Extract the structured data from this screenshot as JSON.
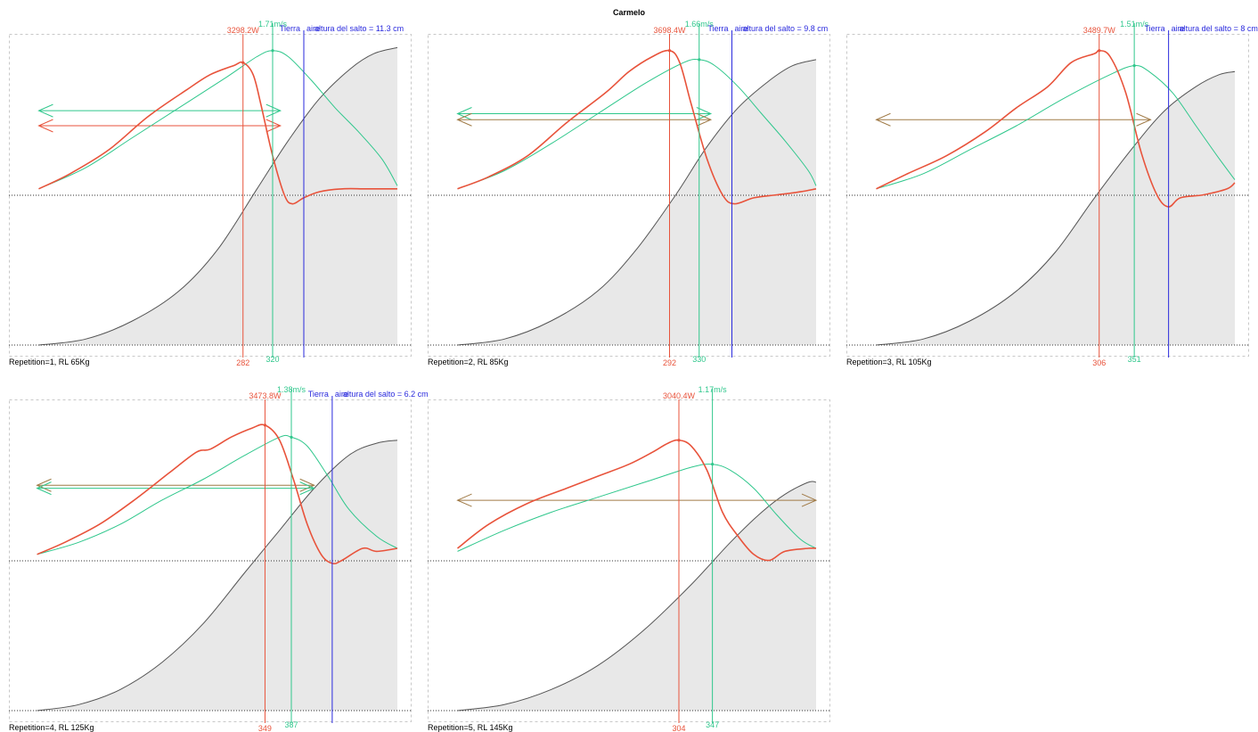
{
  "title": "Carmelo",
  "colors": {
    "power": "#e8533b",
    "speed": "#2fc78c",
    "landing": "#2a2add",
    "range": "#a07a46",
    "area_fill": "#e8e8e8",
    "area_line": "#555555",
    "frame": "#c8c8c8"
  },
  "chart_data": [
    {
      "type": "line",
      "label": "Repetition=1, RL 65Kg",
      "peak_power_label": "3298.2W",
      "peak_power_x": 282,
      "peak_power_x_label": "282",
      "peak_speed_label": "1.71m/s",
      "peak_speed_x": 320,
      "peak_speed_x_label": "320",
      "landing_label_1": "Tierra",
      "landing_label_2": "aire",
      "jump_height_label": "altura del salto = 11.3 cm",
      "x_range": [
        0,
        480
      ],
      "landing_x": 360,
      "series": [
        {
          "name": "power",
          "points": [
            [
              20,
              0.52
            ],
            [
              60,
              0.57
            ],
            [
              110,
              0.65
            ],
            [
              160,
              0.76
            ],
            [
              210,
              0.85
            ],
            [
              240,
              0.9
            ],
            [
              270,
              0.93
            ],
            [
              282,
              0.94
            ],
            [
              295,
              0.9
            ],
            [
              305,
              0.8
            ],
            [
              320,
              0.63
            ],
            [
              335,
              0.5
            ],
            [
              345,
              0.47
            ],
            [
              360,
              0.49
            ],
            [
              380,
              0.51
            ],
            [
              410,
              0.52
            ],
            [
              440,
              0.52
            ],
            [
              480,
              0.52
            ]
          ]
        },
        {
          "name": "speed",
          "points": [
            [
              20,
              0.52
            ],
            [
              80,
              0.59
            ],
            [
              140,
              0.69
            ],
            [
              200,
              0.79
            ],
            [
              260,
              0.89
            ],
            [
              300,
              0.96
            ],
            [
              320,
              0.98
            ],
            [
              340,
              0.96
            ],
            [
              370,
              0.88
            ],
            [
              400,
              0.79
            ],
            [
              430,
              0.71
            ],
            [
              460,
              0.62
            ],
            [
              480,
              0.53
            ]
          ]
        },
        {
          "name": "position",
          "points": [
            [
              20,
              0
            ],
            [
              80,
              0.02
            ],
            [
              140,
              0.08
            ],
            [
              200,
              0.18
            ],
            [
              250,
              0.32
            ],
            [
              300,
              0.52
            ],
            [
              340,
              0.68
            ],
            [
              380,
              0.82
            ],
            [
              420,
              0.92
            ],
            [
              450,
              0.97
            ],
            [
              480,
              0.99
            ]
          ]
        }
      ],
      "ranges": [
        {
          "color": "speed",
          "x": [
            20,
            330
          ],
          "y": 0.78
        },
        {
          "color": "power",
          "x": [
            20,
            330
          ],
          "y": 0.73
        }
      ]
    },
    {
      "type": "line",
      "label": "Repetition=2, RL 85Kg",
      "peak_power_label": "3698.4W",
      "peak_power_x": 292,
      "peak_power_x_label": "292",
      "peak_speed_label": "1.66m/s",
      "peak_speed_x": 330,
      "peak_speed_x_label": "330",
      "landing_label_1": "Tierra",
      "landing_label_2": "aire",
      "jump_height_label": "altura del salto = 9.8 cm",
      "x_range": [
        0,
        480
      ],
      "landing_x": 372,
      "series": [
        {
          "name": "power",
          "points": [
            [
              20,
              0.52
            ],
            [
              60,
              0.56
            ],
            [
              110,
              0.63
            ],
            [
              160,
              0.74
            ],
            [
              210,
              0.84
            ],
            [
              240,
              0.91
            ],
            [
              270,
              0.96
            ],
            [
              292,
              0.98
            ],
            [
              305,
              0.94
            ],
            [
              320,
              0.8
            ],
            [
              340,
              0.62
            ],
            [
              360,
              0.5
            ],
            [
              375,
              0.47
            ],
            [
              400,
              0.49
            ],
            [
              430,
              0.5
            ],
            [
              460,
              0.51
            ],
            [
              480,
              0.52
            ]
          ]
        },
        {
          "name": "speed",
          "points": [
            [
              20,
              0.52
            ],
            [
              80,
              0.58
            ],
            [
              140,
              0.67
            ],
            [
              200,
              0.77
            ],
            [
              260,
              0.87
            ],
            [
              310,
              0.94
            ],
            [
              330,
              0.95
            ],
            [
              350,
              0.93
            ],
            [
              380,
              0.86
            ],
            [
              410,
              0.77
            ],
            [
              440,
              0.68
            ],
            [
              470,
              0.58
            ],
            [
              480,
              0.53
            ]
          ]
        },
        {
          "name": "position",
          "points": [
            [
              20,
              0
            ],
            [
              80,
              0.02
            ],
            [
              140,
              0.08
            ],
            [
              200,
              0.18
            ],
            [
              250,
              0.32
            ],
            [
              300,
              0.5
            ],
            [
              340,
              0.66
            ],
            [
              380,
              0.79
            ],
            [
              420,
              0.88
            ],
            [
              450,
              0.93
            ],
            [
              480,
              0.95
            ]
          ]
        }
      ],
      "ranges": [
        {
          "color": "speed",
          "x": [
            20,
            345
          ],
          "y": 0.77
        },
        {
          "color": "range",
          "x": [
            20,
            345
          ],
          "y": 0.75
        }
      ]
    },
    {
      "type": "line",
      "label": "Repetition=3, RL 105Kg",
      "peak_power_label": "3489.7W",
      "peak_power_x": 306,
      "peak_power_x_label": "306",
      "peak_speed_label": "1.51m/s",
      "peak_speed_x": 351,
      "peak_speed_x_label": "351",
      "landing_label_1": "Tierra",
      "landing_label_2": "aire",
      "jump_height_label": "altura del salto = 8 cm",
      "x_range": [
        0,
        480
      ],
      "landing_x": 395,
      "series": [
        {
          "name": "power",
          "points": [
            [
              20,
              0.52
            ],
            [
              60,
              0.57
            ],
            [
              110,
              0.63
            ],
            [
              160,
              0.71
            ],
            [
              200,
              0.79
            ],
            [
              240,
              0.86
            ],
            [
              270,
              0.94
            ],
            [
              300,
              0.97
            ],
            [
              306,
              0.98
            ],
            [
              320,
              0.96
            ],
            [
              340,
              0.84
            ],
            [
              360,
              0.64
            ],
            [
              380,
              0.5
            ],
            [
              395,
              0.46
            ],
            [
              410,
              0.49
            ],
            [
              440,
              0.5
            ],
            [
              470,
              0.52
            ],
            [
              480,
              0.54
            ]
          ]
        },
        {
          "name": "speed",
          "points": [
            [
              20,
              0.52
            ],
            [
              80,
              0.57
            ],
            [
              140,
              0.65
            ],
            [
              200,
              0.73
            ],
            [
              260,
              0.82
            ],
            [
              320,
              0.9
            ],
            [
              351,
              0.93
            ],
            [
              370,
              0.91
            ],
            [
              400,
              0.84
            ],
            [
              430,
              0.73
            ],
            [
              460,
              0.62
            ],
            [
              480,
              0.55
            ]
          ]
        },
        {
          "name": "position",
          "points": [
            [
              20,
              0
            ],
            [
              80,
              0.02
            ],
            [
              140,
              0.08
            ],
            [
              200,
              0.18
            ],
            [
              250,
              0.31
            ],
            [
              300,
              0.49
            ],
            [
              350,
              0.66
            ],
            [
              390,
              0.78
            ],
            [
              430,
              0.86
            ],
            [
              460,
              0.9
            ],
            [
              480,
              0.91
            ]
          ]
        }
      ],
      "ranges": [
        {
          "color": "range",
          "x": [
            20,
            372
          ],
          "y": 0.75
        }
      ]
    },
    {
      "type": "line",
      "label": "Repetition=4, RL 125Kg",
      "peak_power_label": "3473.8W",
      "peak_power_x": 349,
      "peak_power_x_label": "349",
      "peak_speed_label": "1.38m/s",
      "peak_speed_x": 387,
      "peak_speed_x_label": "387",
      "landing_label_1": "Tierra",
      "landing_label_2": "aire",
      "jump_height_label": "altura del salto = 6.2 cm",
      "x_range": [
        0,
        540
      ],
      "landing_x": 446,
      "series": [
        {
          "name": "power",
          "points": [
            [
              20,
              0.52
            ],
            [
              60,
              0.56
            ],
            [
              110,
              0.62
            ],
            [
              160,
              0.7
            ],
            [
              210,
              0.79
            ],
            [
              250,
              0.86
            ],
            [
              270,
              0.87
            ],
            [
              300,
              0.91
            ],
            [
              330,
              0.94
            ],
            [
              349,
              0.95
            ],
            [
              370,
              0.9
            ],
            [
              390,
              0.77
            ],
            [
              410,
              0.62
            ],
            [
              430,
              0.52
            ],
            [
              446,
              0.49
            ],
            [
              460,
              0.5
            ],
            [
              490,
              0.54
            ],
            [
              510,
              0.53
            ],
            [
              540,
              0.54
            ]
          ]
        },
        {
          "name": "speed",
          "points": [
            [
              20,
              0.52
            ],
            [
              80,
              0.56
            ],
            [
              140,
              0.62
            ],
            [
              200,
              0.7
            ],
            [
              260,
              0.77
            ],
            [
              320,
              0.85
            ],
            [
              370,
              0.91
            ],
            [
              387,
              0.91
            ],
            [
              410,
              0.88
            ],
            [
              440,
              0.78
            ],
            [
              470,
              0.67
            ],
            [
              510,
              0.58
            ],
            [
              540,
              0.54
            ]
          ]
        },
        {
          "name": "position",
          "points": [
            [
              20,
              0
            ],
            [
              80,
              0.02
            ],
            [
              140,
              0.07
            ],
            [
              200,
              0.16
            ],
            [
              260,
              0.29
            ],
            [
              320,
              0.46
            ],
            [
              370,
              0.6
            ],
            [
              420,
              0.74
            ],
            [
              470,
              0.85
            ],
            [
              510,
              0.89
            ],
            [
              540,
              0.9
            ]
          ]
        }
      ],
      "ranges": [
        {
          "color": "range",
          "x": [
            20,
            420
          ],
          "y": 0.75
        },
        {
          "color": "speed",
          "x": [
            20,
            420
          ],
          "y": 0.74
        }
      ]
    },
    {
      "type": "line",
      "label": "Repetition=5, RL 145Kg",
      "peak_power_label": "3040.4W",
      "peak_power_x": 304,
      "peak_power_x_label": "304",
      "peak_speed_label": "1.17m/s",
      "peak_speed_x": 347,
      "peak_speed_x_label": "347",
      "x_range": [
        0,
        480
      ],
      "landing_x": null,
      "series": [
        {
          "name": "power",
          "points": [
            [
              20,
              0.54
            ],
            [
              60,
              0.62
            ],
            [
              110,
              0.69
            ],
            [
              160,
              0.74
            ],
            [
              200,
              0.78
            ],
            [
              240,
              0.82
            ],
            [
              270,
              0.86
            ],
            [
              290,
              0.89
            ],
            [
              304,
              0.9
            ],
            [
              320,
              0.88
            ],
            [
              340,
              0.8
            ],
            [
              360,
              0.66
            ],
            [
              380,
              0.58
            ],
            [
              400,
              0.52
            ],
            [
              420,
              0.5
            ],
            [
              440,
              0.53
            ],
            [
              470,
              0.54
            ],
            [
              480,
              0.54
            ]
          ]
        },
        {
          "name": "speed",
          "points": [
            [
              20,
              0.53
            ],
            [
              80,
              0.6
            ],
            [
              140,
              0.66
            ],
            [
              200,
              0.71
            ],
            [
              260,
              0.76
            ],
            [
              320,
              0.81
            ],
            [
              347,
              0.82
            ],
            [
              370,
              0.8
            ],
            [
              400,
              0.74
            ],
            [
              430,
              0.65
            ],
            [
              460,
              0.57
            ],
            [
              480,
              0.54
            ]
          ]
        },
        {
          "name": "position",
          "points": [
            [
              20,
              0
            ],
            [
              80,
              0.02
            ],
            [
              140,
              0.07
            ],
            [
              200,
              0.15
            ],
            [
              260,
              0.27
            ],
            [
              320,
              0.42
            ],
            [
              370,
              0.56
            ],
            [
              410,
              0.66
            ],
            [
              440,
              0.72
            ],
            [
              470,
              0.76
            ],
            [
              480,
              0.76
            ]
          ]
        }
      ],
      "ranges": [
        {
          "color": "range",
          "x": [
            20,
            480
          ],
          "y": 0.7
        }
      ]
    }
  ]
}
